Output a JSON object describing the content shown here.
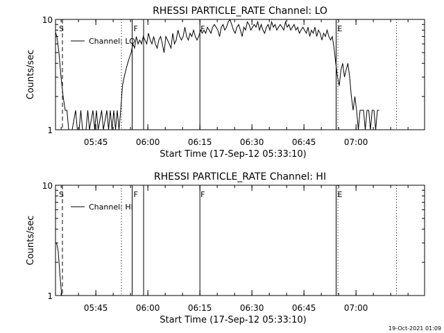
{
  "footer": {
    "timestamp": "19-Oct-2021 01:09"
  },
  "chart_data": [
    {
      "type": "line",
      "title": "RHESSI PARTICLE_RATE Channel: LO",
      "xlabel": "Start Time (17-Sep-12 05:33:10)",
      "ylabel": "Counts/sec",
      "yscale": "log",
      "ylim": [
        1,
        10
      ],
      "xlim_minutes": [
        0,
        87
      ],
      "x_ticks": [
        {
          "label": "05:45",
          "minute": 11.83
        },
        {
          "label": "06:00",
          "minute": 26.83
        },
        {
          "label": "06:15",
          "minute": 41.83
        },
        {
          "label": "06:30",
          "minute": 56.83
        },
        {
          "label": "06:45",
          "minute": 71.83
        },
        {
          "label": "07:00",
          "minute": 86.83
        }
      ],
      "y_ticks": [
        {
          "label": "1",
          "value": 1
        },
        {
          "label": "10",
          "value": 10
        }
      ],
      "legend": {
        "label": "Channel: LO",
        "position": "top-left"
      },
      "flags": [
        {
          "label": "S",
          "minute": 1.0
        },
        {
          "label": "F",
          "minute": 22.5
        },
        {
          "label": "F",
          "minute": 41.83
        },
        {
          "label": "E",
          "minute": 81.3
        }
      ],
      "event_lines_solid_minutes": [
        22.3,
        25.6,
        41.83,
        81.1
      ],
      "event_lines_dashed_minutes": [
        2.2
      ],
      "event_lines_dotted_minutes": [
        19.2,
        81.6,
        98.5
      ],
      "series": [
        {
          "name": "Channel: LO",
          "points": [
            [
              0,
              8.0
            ],
            [
              0.6,
              7.0
            ],
            [
              1.2,
              5.0
            ],
            [
              1.8,
              3.0
            ],
            [
              2.4,
              2.0
            ],
            [
              3.0,
              1.5
            ],
            [
              3.5,
              1.5
            ],
            [
              4.0,
              1.0
            ],
            [
              5.0,
              1.0
            ],
            [
              6.0,
              1.5
            ],
            [
              6.5,
              1.0
            ],
            [
              7.0,
              1.0
            ],
            [
              7.5,
              1.5
            ],
            [
              8.0,
              1.0
            ],
            [
              9.0,
              1.0
            ],
            [
              9.5,
              1.5
            ],
            [
              10.0,
              1.0
            ],
            [
              11.0,
              1.5
            ],
            [
              11.5,
              1.0
            ],
            [
              12.0,
              1.5
            ],
            [
              12.5,
              1.0
            ],
            [
              13.5,
              1.5
            ],
            [
              14.0,
              1.0
            ],
            [
              15.0,
              1.5
            ],
            [
              15.5,
              1.0
            ],
            [
              16.0,
              1.5
            ],
            [
              16.5,
              1.0
            ],
            [
              17.0,
              1.5
            ],
            [
              17.5,
              1.0
            ],
            [
              18.0,
              1.5
            ],
            [
              18.5,
              1.0
            ],
            [
              19.0,
              1.5
            ],
            [
              19.5,
              2.5
            ],
            [
              20.0,
              3.0
            ],
            [
              20.5,
              3.5
            ],
            [
              21.0,
              4.0
            ],
            [
              21.5,
              4.5
            ],
            [
              22.0,
              5.0
            ],
            [
              22.5,
              6.0
            ],
            [
              23.0,
              5.5
            ],
            [
              23.5,
              7.0
            ],
            [
              24.0,
              6.0
            ],
            [
              24.5,
              6.5
            ],
            [
              25.0,
              6.0
            ],
            [
              25.5,
              7.0
            ],
            [
              26.0,
              6.5
            ],
            [
              26.5,
              6.0
            ],
            [
              27.0,
              7.5
            ],
            [
              27.5,
              6.5
            ],
            [
              28.0,
              6.0
            ],
            [
              28.5,
              7.0
            ],
            [
              29.0,
              6.0
            ],
            [
              29.5,
              5.5
            ],
            [
              30.0,
              6.5
            ],
            [
              30.5,
              7.0
            ],
            [
              31.0,
              6.0
            ],
            [
              31.5,
              5.0
            ],
            [
              32.0,
              7.0
            ],
            [
              32.5,
              6.5
            ],
            [
              33.0,
              6.0
            ],
            [
              33.5,
              5.5
            ],
            [
              34.0,
              7.5
            ],
            [
              34.5,
              6.0
            ],
            [
              35.0,
              6.5
            ],
            [
              35.5,
              8.0
            ],
            [
              36.0,
              7.0
            ],
            [
              36.5,
              6.5
            ],
            [
              37.0,
              7.0
            ],
            [
              37.5,
              8.5
            ],
            [
              38.0,
              7.0
            ],
            [
              38.5,
              6.5
            ],
            [
              39.0,
              7.5
            ],
            [
              39.5,
              7.0
            ],
            [
              40.0,
              8.0
            ],
            [
              40.5,
              7.0
            ],
            [
              41.0,
              6.5
            ],
            [
              41.5,
              7.0
            ],
            [
              42.0,
              8.0
            ],
            [
              42.5,
              7.5
            ],
            [
              43.0,
              8.0
            ],
            [
              43.5,
              7.5
            ],
            [
              44.0,
              8.5
            ],
            [
              44.5,
              8.0
            ],
            [
              45.0,
              7.5
            ],
            [
              45.5,
              8.5
            ],
            [
              46.0,
              9.0
            ],
            [
              46.5,
              8.5
            ],
            [
              47.0,
              8.0
            ],
            [
              47.5,
              7.0
            ],
            [
              48.0,
              8.5
            ],
            [
              48.5,
              9.0
            ],
            [
              49.0,
              8.0
            ],
            [
              49.5,
              8.5
            ],
            [
              50.0,
              9.5
            ],
            [
              50.5,
              10.0
            ],
            [
              51.0,
              9.0
            ],
            [
              51.5,
              8.0
            ],
            [
              52.0,
              7.5
            ],
            [
              52.5,
              8.5
            ],
            [
              53.0,
              9.0
            ],
            [
              53.5,
              8.0
            ],
            [
              54.0,
              7.0
            ],
            [
              54.5,
              8.5
            ],
            [
              55.0,
              8.0
            ],
            [
              55.5,
              9.5
            ],
            [
              56.0,
              9.0
            ],
            [
              56.5,
              8.0
            ],
            [
              57.0,
              8.5
            ],
            [
              57.5,
              9.0
            ],
            [
              58.0,
              8.5
            ],
            [
              58.5,
              9.5
            ],
            [
              59.0,
              8.0
            ],
            [
              59.5,
              9.0
            ],
            [
              60.0,
              8.0
            ],
            [
              60.5,
              7.5
            ],
            [
              61.0,
              8.5
            ],
            [
              61.5,
              9.0
            ],
            [
              62.0,
              8.0
            ],
            [
              62.5,
              9.5
            ],
            [
              63.0,
              8.5
            ],
            [
              63.5,
              9.0
            ],
            [
              64.0,
              8.0
            ],
            [
              64.5,
              8.5
            ],
            [
              65.0,
              9.0
            ],
            [
              65.5,
              8.5
            ],
            [
              66.0,
              8.0
            ],
            [
              66.5,
              9.5
            ],
            [
              67.0,
              8.5
            ],
            [
              67.5,
              9.0
            ],
            [
              68.0,
              8.0
            ],
            [
              68.5,
              8.5
            ],
            [
              69.0,
              9.0
            ],
            [
              69.5,
              8.0
            ],
            [
              70.0,
              8.5
            ],
            [
              70.5,
              7.5
            ],
            [
              71.0,
              8.0
            ],
            [
              71.5,
              8.5
            ],
            [
              72.0,
              8.0
            ],
            [
              72.5,
              7.5
            ],
            [
              73.0,
              8.5
            ],
            [
              73.5,
              7.0
            ],
            [
              74.0,
              8.0
            ],
            [
              74.5,
              7.5
            ],
            [
              75.0,
              8.5
            ],
            [
              75.5,
              7.0
            ],
            [
              76.0,
              8.0
            ],
            [
              76.5,
              7.5
            ],
            [
              77.0,
              6.5
            ],
            [
              77.5,
              7.5
            ],
            [
              78.0,
              7.0
            ],
            [
              78.5,
              8.0
            ],
            [
              79.0,
              7.0
            ],
            [
              79.5,
              6.5
            ],
            [
              80.0,
              7.0
            ],
            [
              80.5,
              5.5
            ],
            [
              81.0,
              4.0
            ],
            [
              81.5,
              3.0
            ],
            [
              82.0,
              2.5
            ],
            [
              82.5,
              3.5
            ],
            [
              83.0,
              4.0
            ],
            [
              83.5,
              3.0
            ],
            [
              84.0,
              3.5
            ],
            [
              84.5,
              4.0
            ],
            [
              85.0,
              3.0
            ],
            [
              85.5,
              2.0
            ],
            [
              86.0,
              1.5
            ],
            [
              86.5,
              2.0
            ],
            [
              87.0,
              1.5
            ],
            [
              87.5,
              1.0
            ],
            [
              88.0,
              1.5
            ],
            [
              89.0,
              1.5
            ],
            [
              89.5,
              1.0
            ],
            [
              90.0,
              1.5
            ],
            [
              90.5,
              1.5
            ],
            [
              91.0,
              1.0
            ],
            [
              91.5,
              1.5
            ],
            [
              92.0,
              1.5
            ],
            [
              92.5,
              1.0
            ],
            [
              93.0,
              1.5
            ],
            [
              93.5,
              1.5
            ]
          ]
        }
      ]
    },
    {
      "type": "line",
      "title": "RHESSI PARTICLE_RATE Channel: HI",
      "xlabel": "Start Time (17-Sep-12 05:33:10)",
      "ylabel": "Counts/sec",
      "yscale": "log",
      "ylim": [
        1,
        10
      ],
      "xlim_minutes": [
        0,
        87
      ],
      "x_ticks": [
        {
          "label": "05:45",
          "minute": 11.83
        },
        {
          "label": "06:00",
          "minute": 26.83
        },
        {
          "label": "06:15",
          "minute": 41.83
        },
        {
          "label": "06:30",
          "minute": 56.83
        },
        {
          "label": "06:45",
          "minute": 71.83
        },
        {
          "label": "07:00",
          "minute": 86.83
        }
      ],
      "y_ticks": [
        {
          "label": "1",
          "value": 1
        },
        {
          "label": "10",
          "value": 10
        }
      ],
      "legend": {
        "label": "Channel: HI",
        "position": "top-left"
      },
      "flags": [
        {
          "label": "S",
          "minute": 1.0
        },
        {
          "label": "F",
          "minute": 22.5
        },
        {
          "label": "F",
          "minute": 41.83
        },
        {
          "label": "E",
          "minute": 81.3
        }
      ],
      "event_lines_solid_minutes": [
        22.3,
        25.6,
        41.83,
        81.1
      ],
      "event_lines_dashed_minutes": [
        2.2
      ],
      "event_lines_dotted_minutes": [
        19.2,
        81.6,
        98.5
      ],
      "series": [
        {
          "name": "Channel: HI",
          "points": [
            [
              0,
              3.0
            ],
            [
              0.5,
              3.0
            ],
            [
              1.0,
              2.5
            ],
            [
              1.5,
              1.5
            ],
            [
              2.0,
              1.0
            ]
          ]
        }
      ]
    }
  ]
}
